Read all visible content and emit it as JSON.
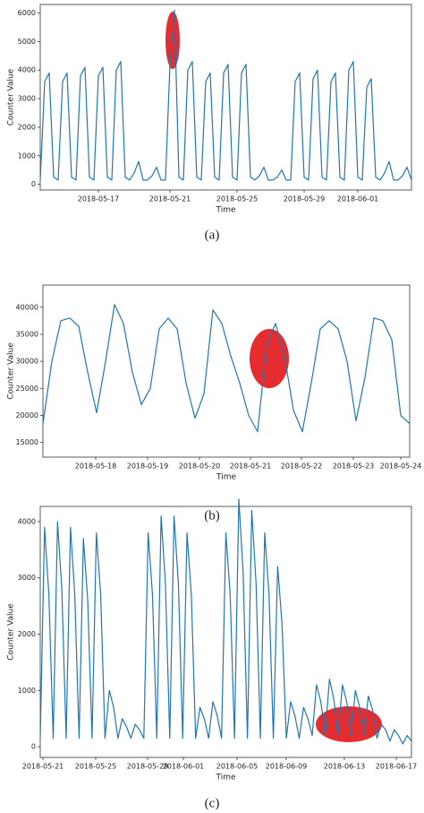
{
  "chart_data": [
    {
      "type": "line",
      "caption": "(a)",
      "x_label": "Time",
      "y_label": "Counter Value",
      "color": "#1f77b4",
      "ylim": [
        -200,
        6300
      ],
      "yticks": [
        0,
        1000,
        2000,
        3000,
        4000,
        5000,
        6000
      ],
      "xticks": [
        "2018-05-17",
        "2018-05-21",
        "2018-05-25",
        "2018-05-29",
        "2018-06-01"
      ],
      "values": [
        150,
        3600,
        3900,
        250,
        150,
        3600,
        3900,
        250,
        150,
        3800,
        4100,
        250,
        150,
        3800,
        4100,
        250,
        150,
        4000,
        4300,
        250,
        150,
        400,
        800,
        150,
        150,
        300,
        600,
        150,
        150,
        4200,
        6100,
        250,
        150,
        4000,
        4300,
        250,
        150,
        3600,
        3900,
        250,
        150,
        3900,
        4200,
        250,
        150,
        3900,
        4200,
        250,
        150,
        300,
        600,
        150,
        150,
        250,
        500,
        150,
        150,
        3600,
        3900,
        250,
        150,
        3700,
        4000,
        250,
        150,
        3600,
        3900,
        250,
        150,
        4000,
        4300,
        250,
        150,
        3400,
        3700,
        250,
        150,
        400,
        800,
        150,
        150,
        300,
        600,
        150
      ]
    },
    {
      "type": "line",
      "caption": "(b)",
      "x_label": "Time",
      "y_label": "Counter Value",
      "color": "#1f77b4",
      "ylim": [
        12300,
        44100
      ],
      "yticks": [
        15000,
        20000,
        25000,
        30000,
        35000,
        40000
      ],
      "xticks": [
        "2018-05-18",
        "2018-05-19",
        "2018-05-20",
        "2018-05-21",
        "2018-05-22",
        "2018-05-23",
        "2018-05-24"
      ],
      "values": [
        18500,
        30000,
        37500,
        38000,
        36500,
        28000,
        20500,
        30000,
        40500,
        37000,
        28000,
        22000,
        25000,
        36000,
        38000,
        36000,
        26000,
        19500,
        24000,
        39500,
        37000,
        31000,
        26000,
        20000,
        17000,
        33000,
        37000,
        31000,
        21000,
        17000,
        26000,
        36000,
        37500,
        36000,
        30000,
        19000,
        27000,
        38000,
        37500,
        34000,
        20000,
        18500
      ]
    },
    {
      "type": "line",
      "caption": "(c)",
      "x_label": "Time",
      "y_label": "Counter Value",
      "color": "#1f77b4",
      "ylim": [
        -190,
        4270
      ],
      "yticks": [
        0,
        1000,
        2000,
        3000,
        4000
      ],
      "xticks": [
        "2018-05-21",
        "2018-05-25",
        "2018-05-29",
        "2018-06-01",
        "2018-06-05",
        "2018-06-09",
        "2018-06-13",
        "2018-06-17"
      ],
      "values": [
        150,
        3900,
        2700,
        150,
        4000,
        2800,
        150,
        3900,
        2700,
        150,
        3700,
        2600,
        150,
        3800,
        2700,
        150,
        1000,
        700,
        150,
        500,
        350,
        150,
        400,
        300,
        150,
        3800,
        2700,
        150,
        4100,
        2900,
        150,
        4100,
        2900,
        150,
        3800,
        2700,
        150,
        700,
        500,
        150,
        800,
        550,
        150,
        3800,
        2700,
        150,
        4400,
        3100,
        150,
        4200,
        2900,
        150,
        3800,
        2700,
        150,
        3200,
        2200,
        150,
        800,
        550,
        150,
        700,
        500,
        200,
        1100,
        800,
        200,
        1200,
        850,
        200,
        1100,
        800,
        200,
        1000,
        700,
        200,
        900,
        650,
        150,
        400,
        300,
        100,
        300,
        200,
        50,
        200,
        100
      ]
    }
  ]
}
